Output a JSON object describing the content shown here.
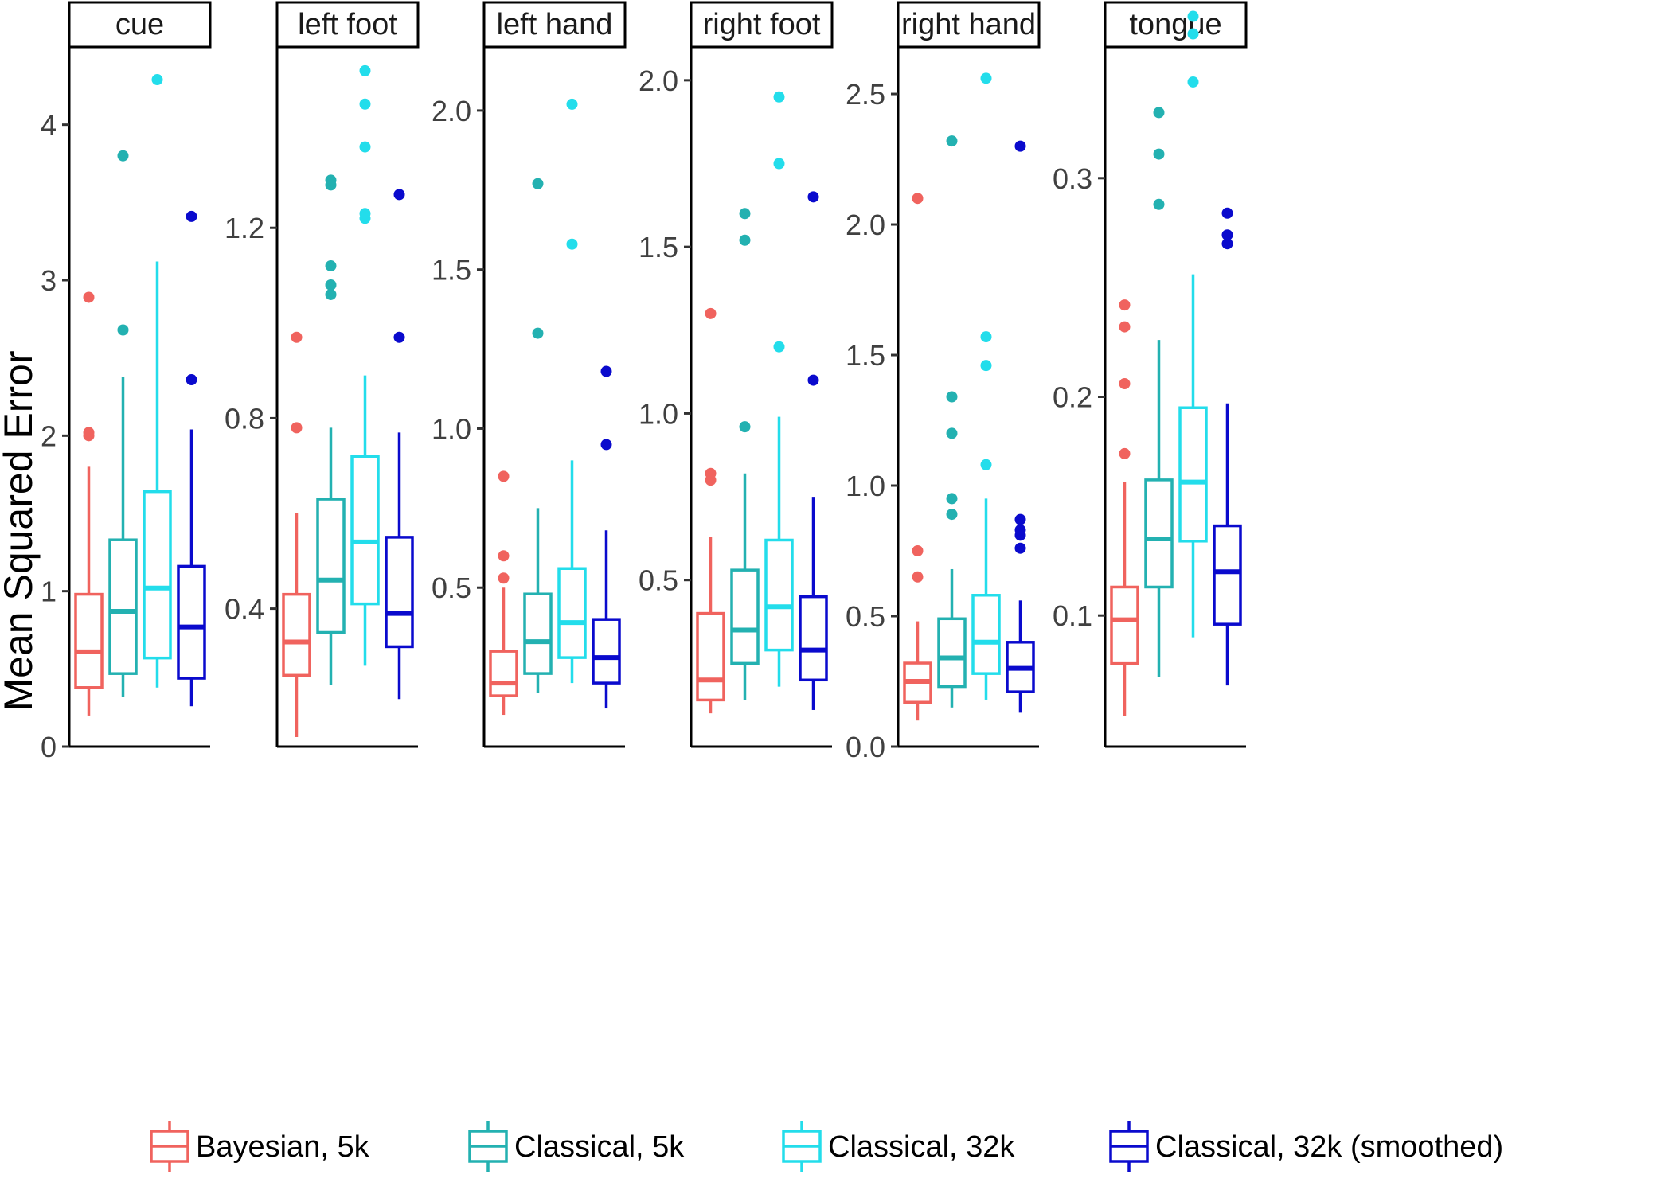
{
  "colors": {
    "bayes_5k": "#F0635E",
    "classical_5k": "#23B1B1",
    "classical_32k": "#23DDEB",
    "classical_32k_smoothed": "#0A0ACD",
    "axis": "#000000",
    "tick_label": "#404040"
  },
  "chart_data": {
    "type": "boxplot",
    "ylabel": "Mean Squared Error",
    "facet_scales": "free_y",
    "legend_position": "bottom",
    "grid": false,
    "series": [
      {
        "name": "Bayesian, 5k",
        "color_key": "bayes_5k"
      },
      {
        "name": "Classical, 5k",
        "color_key": "classical_5k"
      },
      {
        "name": "Classical, 32k",
        "color_key": "classical_32k"
      },
      {
        "name": "Classical, 32k (smoothed)",
        "color_key": "classical_32k_smoothed"
      }
    ],
    "panels": [
      {
        "label": "cue",
        "ylim": [
          0,
          4.5
        ],
        "yticks": [
          0,
          1,
          2,
          3,
          4
        ],
        "yticklabels": [
          "0",
          "1",
          "2",
          "3",
          "4"
        ],
        "boxes": [
          {
            "whisker_low": 0.2,
            "q1": 0.38,
            "median": 0.61,
            "q3": 0.98,
            "whisker_high": 1.8,
            "outliers": [
              2.0,
              2.02,
              2.89
            ]
          },
          {
            "whisker_low": 0.32,
            "q1": 0.47,
            "median": 0.87,
            "q3": 1.33,
            "whisker_high": 2.38,
            "outliers": [
              2.68,
              3.8
            ]
          },
          {
            "whisker_low": 0.38,
            "q1": 0.57,
            "median": 1.02,
            "q3": 1.64,
            "whisker_high": 3.12,
            "outliers": [
              4.29
            ]
          },
          {
            "whisker_low": 0.26,
            "q1": 0.44,
            "median": 0.77,
            "q3": 1.16,
            "whisker_high": 2.04,
            "outliers": [
              2.36,
              3.41
            ]
          }
        ]
      },
      {
        "label": "left foot",
        "ylim": [
          0.11,
          1.58
        ],
        "yticks": [
          0.4,
          0.8,
          1.2
        ],
        "yticklabels": [
          "0.4",
          "0.8",
          "1.2"
        ],
        "boxes": [
          {
            "whisker_low": 0.13,
            "q1": 0.26,
            "median": 0.33,
            "q3": 0.43,
            "whisker_high": 0.6,
            "outliers": [
              0.78,
              0.97
            ]
          },
          {
            "whisker_low": 0.24,
            "q1": 0.35,
            "median": 0.46,
            "q3": 0.63,
            "whisker_high": 0.78,
            "outliers": [
              1.06,
              1.08,
              1.12,
              1.29,
              1.3
            ]
          },
          {
            "whisker_low": 0.28,
            "q1": 0.41,
            "median": 0.54,
            "q3": 0.72,
            "whisker_high": 0.89,
            "outliers": [
              1.22,
              1.23,
              1.37,
              1.46,
              1.53
            ]
          },
          {
            "whisker_low": 0.21,
            "q1": 0.32,
            "median": 0.39,
            "q3": 0.55,
            "whisker_high": 0.77,
            "outliers": [
              0.97,
              1.27
            ]
          }
        ]
      },
      {
        "label": "left hand",
        "ylim": [
          0.0,
          2.2
        ],
        "yticks": [
          0.5,
          1.0,
          1.5,
          2.0
        ],
        "yticklabels": [
          "0.5",
          "1.0",
          "1.5",
          "2.0"
        ],
        "boxes": [
          {
            "whisker_low": 0.1,
            "q1": 0.16,
            "median": 0.2,
            "q3": 0.3,
            "whisker_high": 0.5,
            "outliers": [
              0.53,
              0.6,
              0.85
            ]
          },
          {
            "whisker_low": 0.17,
            "q1": 0.23,
            "median": 0.33,
            "q3": 0.48,
            "whisker_high": 0.75,
            "outliers": [
              1.3,
              1.77
            ]
          },
          {
            "whisker_low": 0.2,
            "q1": 0.28,
            "median": 0.39,
            "q3": 0.56,
            "whisker_high": 0.9,
            "outliers": [
              1.58,
              2.02
            ]
          },
          {
            "whisker_low": 0.12,
            "q1": 0.2,
            "median": 0.28,
            "q3": 0.4,
            "whisker_high": 0.68,
            "outliers": [
              0.95,
              1.18
            ]
          }
        ]
      },
      {
        "label": "right foot",
        "ylim": [
          0.0,
          2.1
        ],
        "yticks": [
          0.5,
          1.0,
          1.5,
          2.0
        ],
        "yticklabels": [
          "0.5",
          "1.0",
          "1.5",
          "2.0"
        ],
        "boxes": [
          {
            "whisker_low": 0.1,
            "q1": 0.14,
            "median": 0.2,
            "q3": 0.4,
            "whisker_high": 0.63,
            "outliers": [
              0.8,
              0.82,
              1.3
            ]
          },
          {
            "whisker_low": 0.14,
            "q1": 0.25,
            "median": 0.35,
            "q3": 0.53,
            "whisker_high": 0.82,
            "outliers": [
              0.96,
              1.52,
              1.6
            ]
          },
          {
            "whisker_low": 0.18,
            "q1": 0.29,
            "median": 0.42,
            "q3": 0.62,
            "whisker_high": 0.99,
            "outliers": [
              1.2,
              1.75,
              1.95
            ]
          },
          {
            "whisker_low": 0.11,
            "q1": 0.2,
            "median": 0.29,
            "q3": 0.45,
            "whisker_high": 0.75,
            "outliers": [
              1.1,
              1.65
            ]
          }
        ]
      },
      {
        "label": "right hand",
        "ylim": [
          0.0,
          2.68
        ],
        "yticks": [
          0.0,
          0.5,
          1.0,
          1.5,
          2.0,
          2.5
        ],
        "yticklabels": [
          "0.0",
          "0.5",
          "1.0",
          "1.5",
          "2.0",
          "2.5"
        ],
        "boxes": [
          {
            "whisker_low": 0.1,
            "q1": 0.17,
            "median": 0.25,
            "q3": 0.32,
            "whisker_high": 0.48,
            "outliers": [
              0.65,
              0.75,
              2.1
            ]
          },
          {
            "whisker_low": 0.15,
            "q1": 0.23,
            "median": 0.34,
            "q3": 0.49,
            "whisker_high": 0.68,
            "outliers": [
              0.89,
              0.95,
              1.2,
              1.34,
              2.32
            ]
          },
          {
            "whisker_low": 0.18,
            "q1": 0.28,
            "median": 0.4,
            "q3": 0.58,
            "whisker_high": 0.95,
            "outliers": [
              1.08,
              1.46,
              1.57,
              2.56
            ]
          },
          {
            "whisker_low": 0.13,
            "q1": 0.21,
            "median": 0.3,
            "q3": 0.4,
            "whisker_high": 0.56,
            "outliers": [
              0.76,
              0.81,
              0.83,
              0.87,
              2.3
            ]
          }
        ]
      },
      {
        "label": "tongue",
        "ylim": [
          0.04,
          0.36
        ],
        "yticks": [
          0.1,
          0.2,
          0.3
        ],
        "yticklabels": [
          "0.1",
          "0.2",
          "0.3"
        ],
        "boxes": [
          {
            "whisker_low": 0.054,
            "q1": 0.078,
            "median": 0.098,
            "q3": 0.113,
            "whisker_high": 0.161,
            "outliers": [
              0.174,
              0.206,
              0.232,
              0.242
            ]
          },
          {
            "whisker_low": 0.072,
            "q1": 0.113,
            "median": 0.135,
            "q3": 0.162,
            "whisker_high": 0.226,
            "outliers": [
              0.288,
              0.311,
              0.33
            ]
          },
          {
            "whisker_low": 0.09,
            "q1": 0.134,
            "median": 0.161,
            "q3": 0.195,
            "whisker_high": 0.256,
            "outliers": [
              0.344,
              0.366,
              0.374
            ]
          },
          {
            "whisker_low": 0.068,
            "q1": 0.096,
            "median": 0.12,
            "q3": 0.141,
            "whisker_high": 0.197,
            "outliers": [
              0.27,
              0.274,
              0.284
            ]
          }
        ]
      }
    ]
  }
}
